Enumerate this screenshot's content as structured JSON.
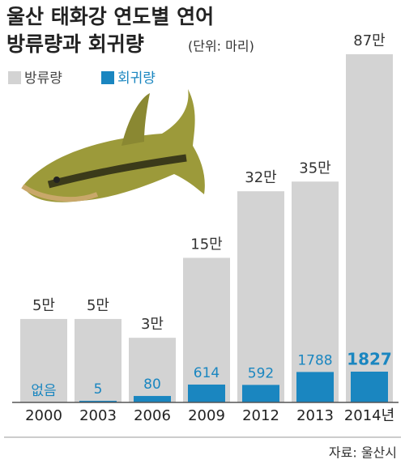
{
  "chart_data": {
    "type": "bar",
    "title": "울산 태화강 연도별 연어",
    "subtitle": "방류량과 회귀량",
    "unit": "(단위: 마리)",
    "scale": "sqrt",
    "categories": [
      "2000",
      "2003",
      "2006",
      "2009",
      "2012",
      "2013",
      "2014년"
    ],
    "series": [
      {
        "name": "방류량",
        "color": "#d3d3d3",
        "values": [
          50000,
          50000,
          30000,
          150000,
          320000,
          350000,
          870000
        ],
        "value_labels": [
          "5만",
          "5만",
          "3만",
          "15만",
          "32만",
          "35만",
          "87만"
        ]
      },
      {
        "name": "회귀량",
        "color": "#1a86c0",
        "values": [
          0,
          5,
          80,
          614,
          592,
          1788,
          1827
        ],
        "value_labels": [
          "없음",
          "5",
          "80",
          "614",
          "592",
          "1788",
          "1827"
        ]
      }
    ],
    "source": "자료: 울산시"
  }
}
